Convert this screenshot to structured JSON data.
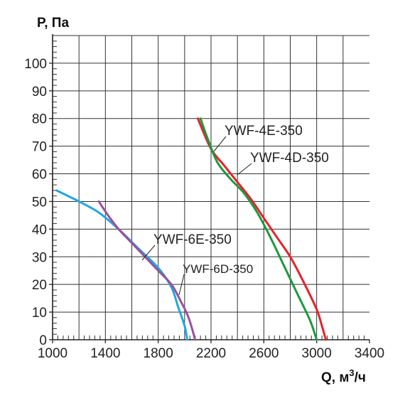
{
  "chart_data": {
    "type": "line",
    "title": "",
    "xlabel": "Q, м",
    "xlabel_sup": "3",
    "xlabel_unit": "/ч",
    "ylabel": "P, Па",
    "xlim": [
      1000,
      3400
    ],
    "ylim": [
      0,
      110
    ],
    "x_ticks": [
      1000,
      1400,
      1800,
      2200,
      2600,
      3000,
      3400
    ],
    "y_ticks": [
      0,
      10,
      20,
      30,
      40,
      50,
      60,
      70,
      80,
      90,
      100
    ],
    "grid": true,
    "series": [
      {
        "name": "YWF-4E-350",
        "color": "#e8202a",
        "points": [
          [
            2100,
            80
          ],
          [
            2200,
            69
          ],
          [
            2300,
            63
          ],
          [
            2400,
            57
          ],
          [
            2500,
            51
          ],
          [
            2600,
            44
          ],
          [
            2700,
            37
          ],
          [
            2800,
            30
          ],
          [
            2900,
            21
          ],
          [
            3000,
            11
          ],
          [
            3040,
            5
          ],
          [
            3070,
            0
          ]
        ]
      },
      {
        "name": "YWF-4D-350",
        "color": "#1a9a3c",
        "points": [
          [
            2120,
            80
          ],
          [
            2180,
            72
          ],
          [
            2250,
            64
          ],
          [
            2350,
            58
          ],
          [
            2450,
            53
          ],
          [
            2550,
            46
          ],
          [
            2650,
            37
          ],
          [
            2750,
            27
          ],
          [
            2850,
            17
          ],
          [
            2950,
            7
          ],
          [
            3000,
            0
          ]
        ]
      },
      {
        "name": "YWF-6E-350",
        "color": "#1fa8e0",
        "points": [
          [
            1030,
            54
          ],
          [
            1200,
            50
          ],
          [
            1350,
            46
          ],
          [
            1500,
            40
          ],
          [
            1650,
            33
          ],
          [
            1800,
            26
          ],
          [
            1900,
            19
          ],
          [
            1950,
            12
          ],
          [
            2000,
            5
          ],
          [
            2020,
            0
          ]
        ]
      },
      {
        "name": "YWF-6D-350",
        "color": "#9b4f9c",
        "points": [
          [
            1350,
            50
          ],
          [
            1420,
            45
          ],
          [
            1500,
            40
          ],
          [
            1600,
            35
          ],
          [
            1700,
            30
          ],
          [
            1800,
            25
          ],
          [
            1900,
            20
          ],
          [
            1970,
            14
          ],
          [
            2030,
            8
          ],
          [
            2080,
            0
          ]
        ]
      }
    ]
  }
}
